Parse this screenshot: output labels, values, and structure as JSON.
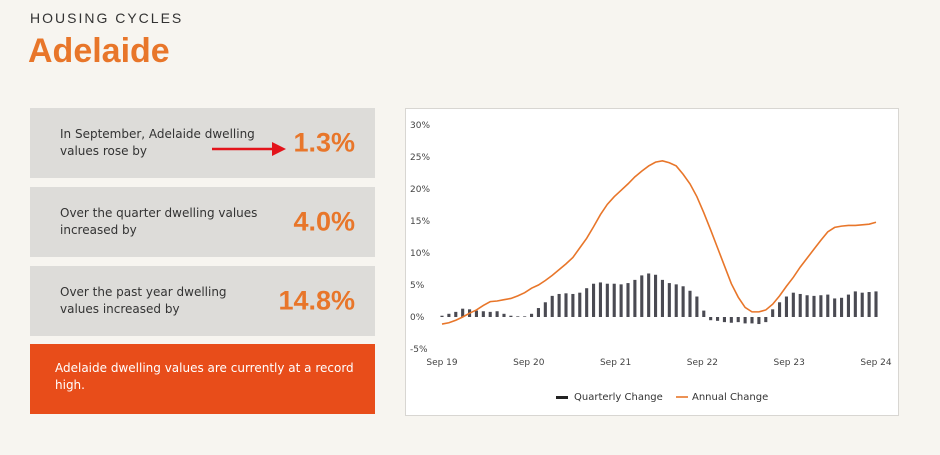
{
  "header": {
    "kicker": "HOUSING CYCLES",
    "city": "Adelaide"
  },
  "cards": [
    {
      "text": "In September, Adelaide dwelling values rose by",
      "value": "1.3%"
    },
    {
      "text": "Over the quarter dwelling values increased by",
      "value": "4.0%"
    },
    {
      "text": "Over the past year dwelling values increased by",
      "value": "14.8%"
    }
  ],
  "callout": {
    "text": "Adelaide dwelling values are currently at a record high."
  },
  "colors": {
    "accent": "#e8762a",
    "callout_bg": "#e84d1a",
    "bar": "#4a4a52",
    "arrow": "#e3141b"
  },
  "chart_data": {
    "type": "bar+line",
    "x_ticks": [
      "Sep 19",
      "Sep 20",
      "Sep 21",
      "Sep 22",
      "Sep 23",
      "Sep 24"
    ],
    "y_ticks": [
      "30%",
      "25%",
      "20%",
      "15%",
      "10%",
      "5%",
      "0%",
      "-5%"
    ],
    "ylim": [
      -5,
      30
    ],
    "legend": [
      "Quarterly Change",
      "Annual Change"
    ],
    "legend_position": "bottom",
    "series": [
      {
        "name": "Quarterly Change",
        "type": "bar",
        "values": [
          0.2,
          0.5,
          0.8,
          1.3,
          1.2,
          1.0,
          0.9,
          0.8,
          0.9,
          0.5,
          0.2,
          0.1,
          0.1,
          0.5,
          1.4,
          2.3,
          3.3,
          3.6,
          3.7,
          3.6,
          3.8,
          4.5,
          5.2,
          5.4,
          5.2,
          5.2,
          5.1,
          5.3,
          5.8,
          6.5,
          6.8,
          6.6,
          5.8,
          5.3,
          5.1,
          4.8,
          4.1,
          3.2,
          1.0,
          -0.5,
          -0.6,
          -0.8,
          -0.9,
          -0.8,
          -1.0,
          -1.0,
          -1.1,
          -0.8,
          1.2,
          2.3,
          3.2,
          3.8,
          3.6,
          3.4,
          3.3,
          3.4,
          3.5,
          2.9,
          3.0,
          3.5,
          4.0,
          3.8,
          3.9,
          4.0
        ]
      },
      {
        "name": "Annual Change",
        "type": "line",
        "values": [
          -1.1,
          -0.9,
          -0.5,
          0.0,
          0.6,
          1.1,
          1.8,
          2.4,
          2.5,
          2.7,
          2.9,
          3.3,
          3.8,
          4.5,
          5.0,
          5.7,
          6.5,
          7.4,
          8.3,
          9.3,
          10.8,
          12.3,
          14.1,
          16.0,
          17.6,
          18.8,
          19.8,
          20.8,
          21.9,
          22.8,
          23.6,
          24.2,
          24.4,
          24.1,
          23.6,
          22.3,
          20.8,
          18.8,
          16.3,
          13.6,
          10.8,
          8.0,
          5.2,
          3.1,
          1.5,
          0.8,
          0.8,
          1.1,
          2.0,
          3.3,
          4.8,
          6.2,
          7.8,
          9.2,
          10.6,
          12.0,
          13.3,
          14.0,
          14.2,
          14.3,
          14.3,
          14.4,
          14.5,
          14.8
        ]
      }
    ]
  }
}
